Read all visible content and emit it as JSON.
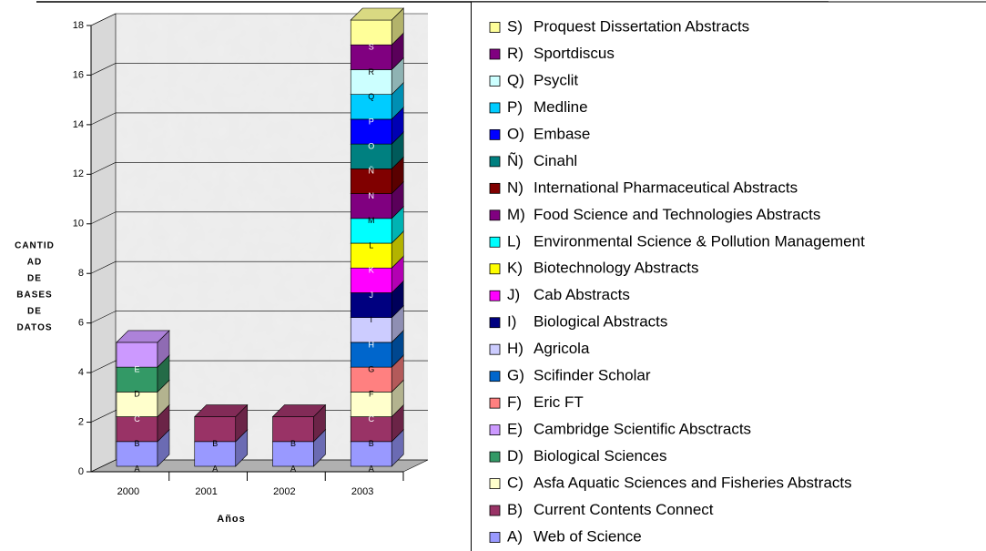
{
  "chart_data": {
    "type": "bar3d_stacked",
    "categories": [
      "2000",
      "2001",
      "2002",
      "2003"
    ],
    "xlabel": "Años",
    "ylabel_lines": [
      "CANTID",
      "AD",
      "DE",
      "BASES",
      "DE",
      "DATOS"
    ],
    "ylim": [
      0,
      18
    ],
    "yticks": [
      0,
      2,
      4,
      6,
      8,
      10,
      12,
      14,
      16,
      18
    ],
    "grid": true,
    "legend": "right",
    "series": [
      {
        "label": "A",
        "key": "A)",
        "name": "Web of Science",
        "color": "#9999ff",
        "values": [
          1,
          1,
          1,
          1
        ]
      },
      {
        "label": "B",
        "key": "B)",
        "name": "Current Contents Connect",
        "color": "#993366",
        "values": [
          1,
          1,
          1,
          1
        ]
      },
      {
        "label": "C",
        "key": "C)",
        "name": "Asfa Aquatic Sciences and Fisheries Abstracts",
        "color": "#ffffcc",
        "values": [
          1,
          0,
          0,
          1
        ]
      },
      {
        "label": "D",
        "key": "D)",
        "name": "Biological Sciences",
        "color": "#339966",
        "values": [
          1,
          0,
          0,
          0
        ]
      },
      {
        "label": "E",
        "key": "E)",
        "name": "Cambridge Scientific Absctracts",
        "color": "#cc99ff",
        "values": [
          1,
          0,
          0,
          0
        ]
      },
      {
        "label": "F",
        "key": "F)",
        "name": "Eric FT",
        "color": "#ff8080",
        "values": [
          0,
          0,
          0,
          1
        ]
      },
      {
        "label": "G",
        "key": "G)",
        "name": "Scifinder Scholar",
        "color": "#0066cc",
        "values": [
          0,
          0,
          0,
          1
        ]
      },
      {
        "label": "H",
        "key": "H)",
        "name": "Agricola",
        "color": "#ccccff",
        "values": [
          0,
          0,
          0,
          1
        ]
      },
      {
        "label": "I",
        "key": "I)",
        "name": "Biological Abstracts",
        "color": "#000080",
        "values": [
          0,
          0,
          0,
          1
        ]
      },
      {
        "label": "J",
        "key": "J)",
        "name": "Cab Abstracts",
        "color": "#ff00ff",
        "values": [
          0,
          0,
          0,
          1
        ]
      },
      {
        "label": "K",
        "key": "K)",
        "name": "Biotechnology Abstracts",
        "color": "#ffff00",
        "values": [
          0,
          0,
          0,
          1
        ]
      },
      {
        "label": "L",
        "key": "L)",
        "name": "Environmental Science & Pollution Management",
        "color": "#00ffff",
        "values": [
          0,
          0,
          0,
          1
        ]
      },
      {
        "label": "M",
        "key": "M)",
        "name": "Food Science and Technologies Abstracts",
        "color": "#800080",
        "values": [
          0,
          0,
          0,
          1
        ]
      },
      {
        "label": "N",
        "key": "N)",
        "name": "International Pharmaceutical Abstracts",
        "color": "#800000",
        "values": [
          0,
          0,
          0,
          1
        ]
      },
      {
        "label": "Ñ",
        "key": "Ñ)",
        "name": "Cinahl",
        "color": "#008080",
        "values": [
          0,
          0,
          0,
          1
        ]
      },
      {
        "label": "O",
        "key": "O)",
        "name": "Embase",
        "color": "#0000ff",
        "values": [
          0,
          0,
          0,
          1
        ]
      },
      {
        "label": "P",
        "key": "P)",
        "name": "Medline",
        "color": "#00ccff",
        "values": [
          0,
          0,
          0,
          1
        ]
      },
      {
        "label": "Q",
        "key": "Q)",
        "name": "Psyclit",
        "color": "#ccffff",
        "values": [
          0,
          0,
          0,
          1
        ]
      },
      {
        "label": "R",
        "key": "R)",
        "name": "Sportdiscus",
        "color": "#800080",
        "values": [
          0,
          0,
          0,
          1
        ]
      },
      {
        "label": "S",
        "key": "S)",
        "name": "Proquest Dissertation Abstracts",
        "color": "#ffff99",
        "values": [
          0,
          0,
          0,
          1
        ]
      }
    ]
  }
}
